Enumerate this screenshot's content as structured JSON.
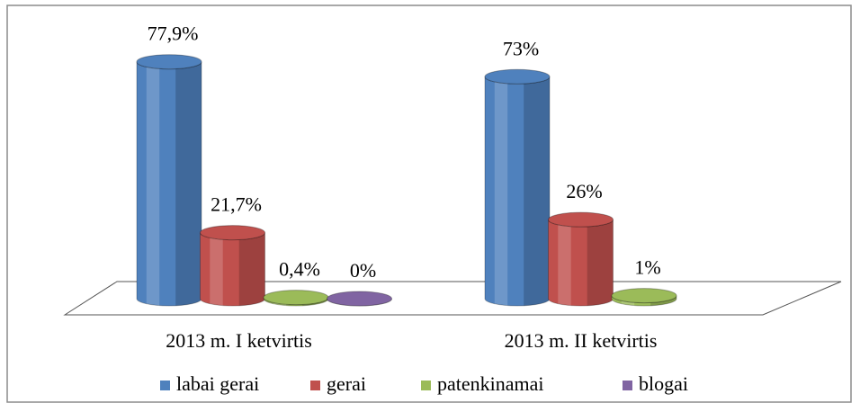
{
  "chart_data": {
    "type": "bar3d",
    "categories": [
      "2013 m. I ketvirtis",
      "2013 m. II ketvirtis"
    ],
    "series": [
      {
        "name": "labai gerai",
        "color": "#4f81bd",
        "values": [
          77.9,
          73
        ],
        "value_labels": [
          "77,9%",
          "73%"
        ]
      },
      {
        "name": "gerai",
        "color": "#c0504d",
        "values": [
          21.7,
          26
        ],
        "value_labels": [
          "21,7%",
          "26%"
        ]
      },
      {
        "name": "patenkinamai",
        "color": "#9bbb59",
        "values": [
          0.4,
          1
        ],
        "value_labels": [
          "0,4%",
          "1%"
        ]
      },
      {
        "name": "blogai",
        "color": "#8064a2",
        "values": [
          0,
          null
        ],
        "value_labels": [
          "0%",
          null
        ]
      }
    ],
    "legend": "bottom"
  }
}
